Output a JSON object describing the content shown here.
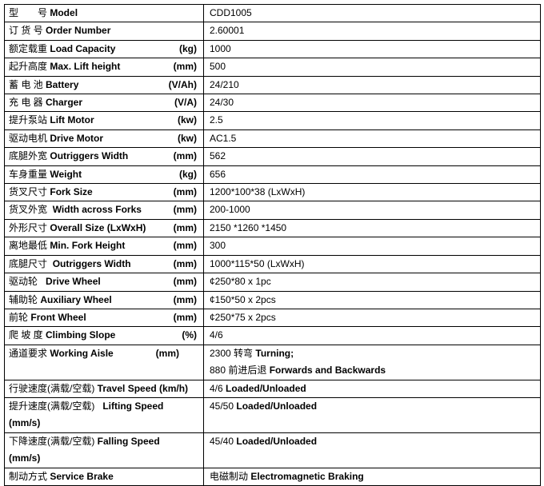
{
  "rows": [
    {
      "cn": "型　　号",
      "en": "Model",
      "unit": "",
      "value": "CDD1005",
      "value_bold": ""
    },
    {
      "cn": "订 货 号",
      "en": "Order Number",
      "unit": "",
      "value": "2.60001",
      "value_bold": ""
    },
    {
      "cn": "额定载重",
      "en": "Load Capacity",
      "unit": "(kg)",
      "value": "1000",
      "value_bold": ""
    },
    {
      "cn": "起升高度",
      "en": "Max. Lift height",
      "unit": "(mm)",
      "value": "500",
      "value_bold": ""
    },
    {
      "cn": "蓄 电 池",
      "en": "Battery",
      "unit": "(V/Ah)",
      "value": "24/210",
      "value_bold": ""
    },
    {
      "cn": "充 电 器",
      "en": "Charger",
      "unit": "(V/A)",
      "value": "24/30",
      "value_bold": ""
    },
    {
      "cn": "提升泵站",
      "en": "Lift Motor",
      "unit": "(kw)",
      "value": "2.5",
      "value_bold": ""
    },
    {
      "cn": "驱动电机",
      "en": "Drive Motor",
      "unit": "(kw)",
      "value": "AC1.5",
      "value_bold": ""
    },
    {
      "cn": "底腿外宽",
      "en": "Outriggers Width",
      "unit": "(mm)",
      "value": "562",
      "value_bold": ""
    },
    {
      "cn": "车身重量",
      "en": "Weight",
      "unit": "(kg)",
      "value": "656",
      "value_bold": ""
    },
    {
      "cn": "货叉尺寸",
      "en": "Fork Size",
      "unit": "(mm)",
      "value": "1200*100*38 (LxWxH)",
      "value_bold": ""
    },
    {
      "cn": "货叉外宽",
      "en": " Width across Forks",
      "unit": "(mm)",
      "value": "200-1000",
      "value_bold": ""
    },
    {
      "cn": "外形尺寸",
      "en": "Overall Size (LxWxH)",
      "unit": "(mm)",
      "value": "2150 *1260 *1450",
      "value_bold": ""
    },
    {
      "cn": "离地最低",
      "en": "Min. Fork Height",
      "unit": "(mm)",
      "value": "300",
      "value_bold": ""
    },
    {
      "cn": "底腿尺寸",
      "en": " Outriggers Width",
      "unit": "(mm)",
      "value": "1000*115*50 (LxWxH)",
      "value_bold": ""
    },
    {
      "cn": "驱动轮",
      "en": "  Drive Wheel",
      "unit": "(mm)",
      "value": "¢250*80 x 1pc",
      "value_bold": ""
    },
    {
      "cn": "辅助轮",
      "en": "Auxiliary Wheel",
      "unit": "(mm)",
      "value": "¢150*50 x 2pcs",
      "value_bold": ""
    },
    {
      "cn": "前轮",
      "en": "Front Wheel",
      "unit": "(mm)",
      "value": "¢250*75 x 2pcs",
      "value_bold": ""
    },
    {
      "cn": "爬 坡 度",
      "en": "Climbing Slope",
      "unit": "(%)",
      "value": "4/6",
      "value_bold": ""
    }
  ],
  "working_aisle": {
    "cn": "通道要求",
    "en": "Working Aisle",
    "unit": "(mm)",
    "line1": "2300 转弯",
    "line1_bold": "Turning;",
    "line2": "880 前进后退",
    "line2_bold": "Forwards and Backwards"
  },
  "travel_speed": {
    "cn": "行驶速度(满载/空载)",
    "en": "Travel Speed (km/h)",
    "value": "4/6",
    "value_bold": "Loaded/Unloaded"
  },
  "lifting_speed": {
    "cn": "提升速度(满载/空载)",
    "en": "Lifting Speed",
    "unit": "(mm/s)",
    "value": "45/50",
    "value_bold": "Loaded/Unloaded"
  },
  "falling_speed": {
    "cn": "下降速度(满载/空载)",
    "en": "Falling Speed",
    "unit": "(mm/s)",
    "value": "45/40",
    "value_bold": "Loaded/Unloaded"
  },
  "service_brake": {
    "cn": "制动方式",
    "en": "Service Brake",
    "value": "电磁制动",
    "value_bold": "Electromagnetic Braking"
  }
}
